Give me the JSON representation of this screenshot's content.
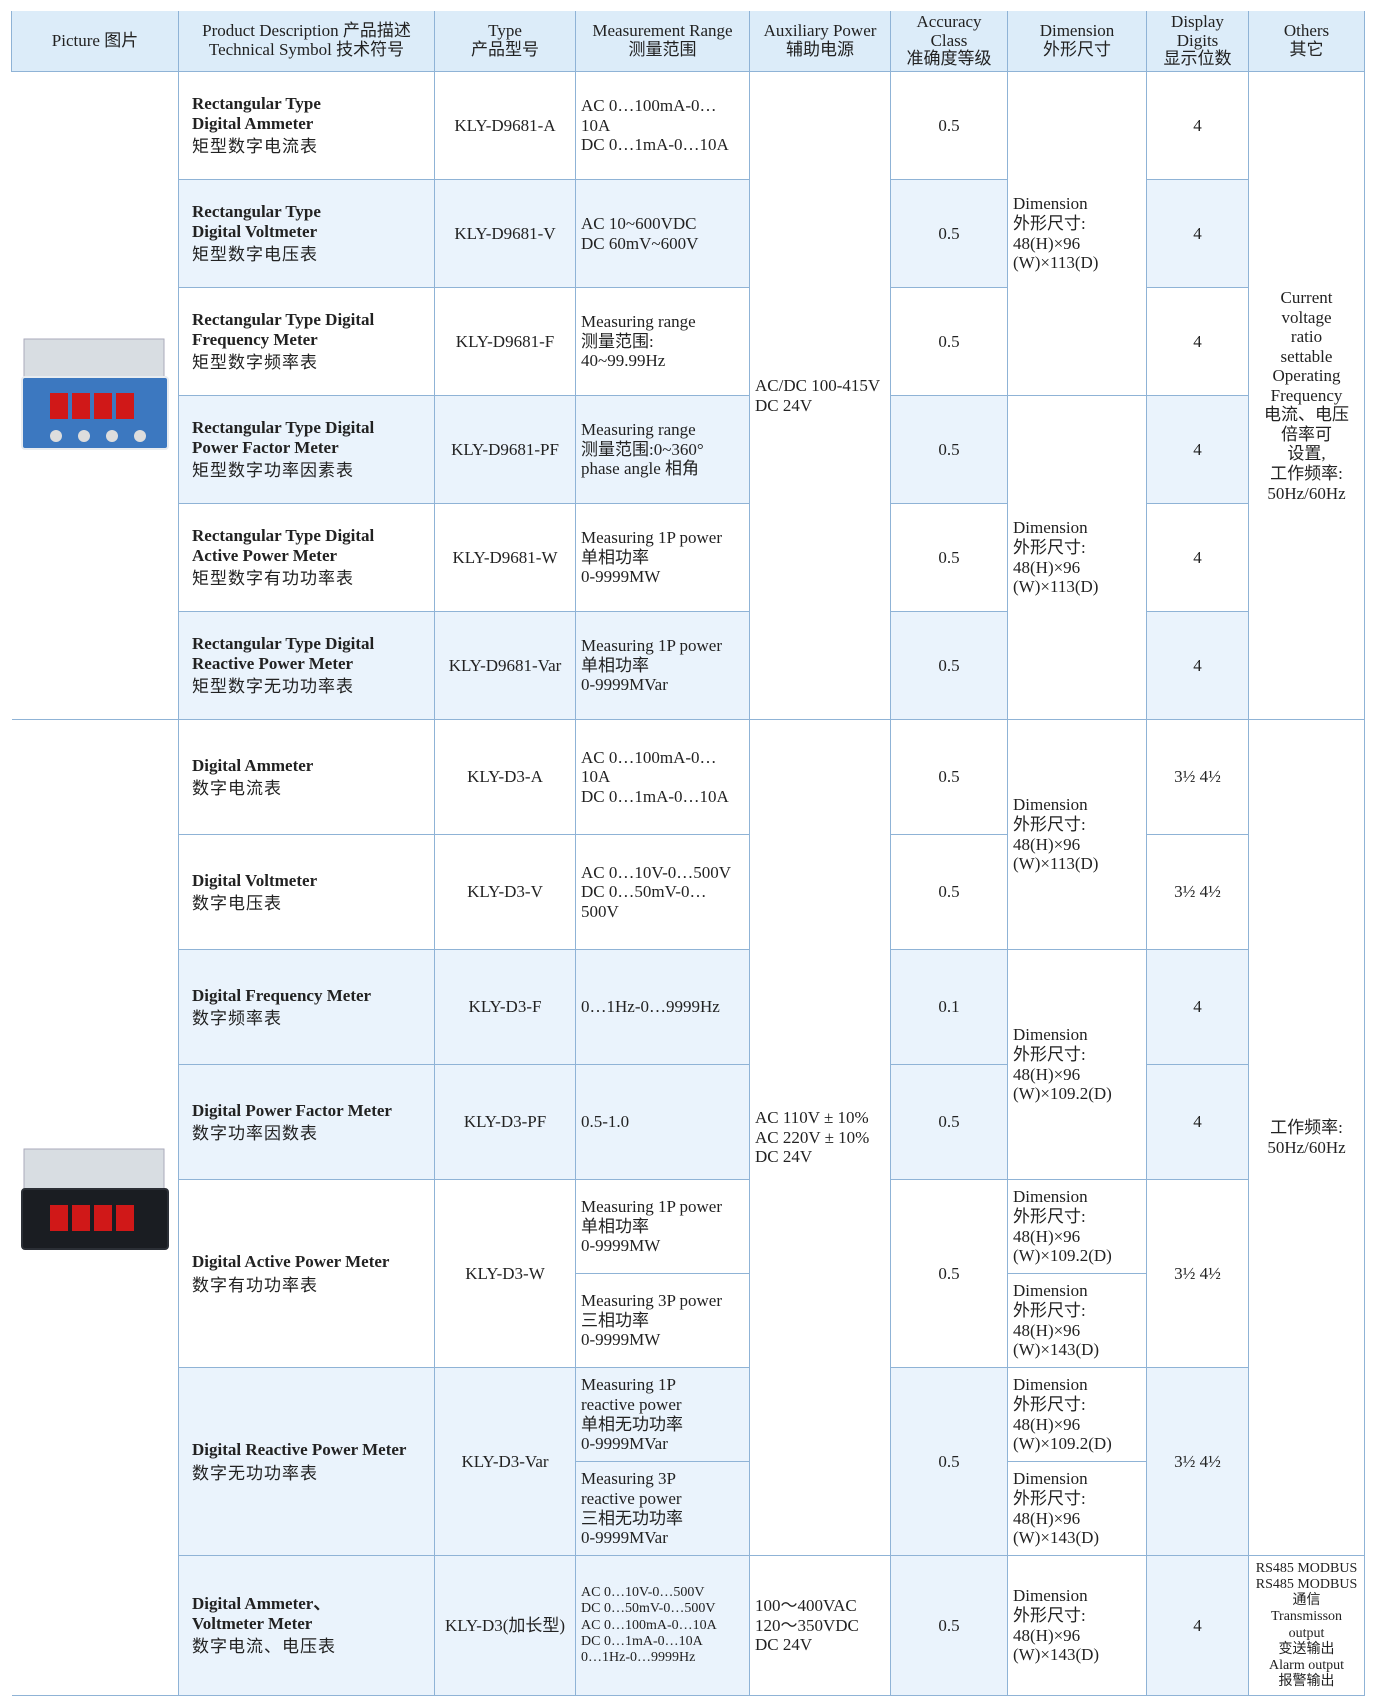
{
  "header": [
    [
      "Picture 图片"
    ],
    [
      "Product Description 产品描述",
      "Technical Symbol 技术符号"
    ],
    [
      "Type",
      "产品型号"
    ],
    [
      "Measurement Range",
      "测量范围"
    ],
    [
      "Auxiliary Power",
      "辅助电源"
    ],
    [
      "Accuracy Class",
      "准确度等级"
    ],
    [
      "Dimension",
      "外形尺寸"
    ],
    [
      "Display Digits",
      "显示位数"
    ],
    [
      "Others",
      "其它"
    ]
  ],
  "s1": {
    "rows": [
      {
        "name": [
          "Rectangular Type",
          "Digital Ammeter"
        ],
        "name_zh": "矩型数字电流表",
        "type": "KLY-D9681-A",
        "range": [
          "AC 0…100mA-0…10A",
          "DC 0…1mA-0…10A"
        ],
        "accuracy": "0.5",
        "digits": "4"
      },
      {
        "name": [
          "Rectangular Type",
          "Digital Voltmeter"
        ],
        "name_zh": "矩型数字电压表",
        "type": "KLY-D9681-V",
        "range": [
          "AC 10~600VDC",
          "DC 60mV~600V"
        ],
        "accuracy": "0.5",
        "digits": "4"
      },
      {
        "name": [
          "Rectangular Type Digital",
          "Frequency Meter"
        ],
        "name_zh": "矩型数字频率表",
        "type": "KLY-D9681-F",
        "range": [
          "Measuring range",
          "测量范围:",
          "40~99.99Hz"
        ],
        "accuracy": "0.5",
        "digits": "4"
      },
      {
        "name": [
          "Rectangular Type Digital",
          "Power Factor Meter"
        ],
        "name_zh": "矩型数字功率因素表",
        "type": "KLY-D9681-PF",
        "range": [
          "Measuring range",
          "测量范围:0~360°",
          "phase angle 相角"
        ],
        "accuracy": "0.5",
        "digits": "4"
      },
      {
        "name": [
          "Rectangular Type Digital",
          "Active Power Meter"
        ],
        "name_zh": "矩型数字有功功率表",
        "type": "KLY-D9681-W",
        "range": [
          "Measuring 1P power",
          "单相功率",
          "0-9999MW"
        ],
        "accuracy": "0.5",
        "digits": "4"
      },
      {
        "name": [
          "Rectangular Type Digital",
          "Reactive Power Meter"
        ],
        "name_zh": "矩型数字无功功率表",
        "type": "KLY-D9681-Var",
        "range": [
          "Measuring 1P power",
          "单相功率",
          "0-9999MVar"
        ],
        "accuracy": "0.5",
        "digits": "4"
      }
    ],
    "aux": [
      "AC/DC 100-415V",
      "DC 24V"
    ],
    "dimension": [
      [
        "Dimension",
        "外形尺寸:",
        "48(H)×96",
        "(W)×113(D)"
      ],
      [
        "Dimension",
        "外形尺寸:",
        "48(H)×96",
        "(W)×113(D)"
      ]
    ],
    "others": [
      "Current",
      "voltage",
      "ratio",
      "settable",
      "Operating",
      "Frequency",
      "电流、电压",
      "倍率可",
      "设置,",
      "工作频率:",
      "50Hz/60Hz"
    ]
  },
  "s2": {
    "rows": [
      {
        "name": [
          "Digital Ammeter"
        ],
        "name_zh": "数字电流表",
        "type": "KLY-D3-A",
        "range": [
          "AC 0…100mA-0…10A",
          "DC 0…1mA-0…10A"
        ],
        "accuracy": "0.5",
        "digits": "3½ 4½"
      },
      {
        "name": [
          "Digital Voltmeter"
        ],
        "name_zh": "数字电压表",
        "type": "KLY-D3-V",
        "range": [
          "AC 0…10V-0…500V",
          "DC 0…50mV-0…500V"
        ],
        "accuracy": "0.5",
        "digits": "3½ 4½"
      },
      {
        "name": [
          "Digital Frequency Meter"
        ],
        "name_zh": "数字频率表",
        "type": "KLY-D3-F",
        "range": [
          "0…1Hz-0…9999Hz"
        ],
        "accuracy": "0.1",
        "digits": "4"
      },
      {
        "name": [
          "Digital Power Factor Meter"
        ],
        "name_zh": "数字功率因数表",
        "type": "KLY-D3-PF",
        "range": [
          "0.5-1.0"
        ],
        "accuracy": "0.5",
        "digits": "4"
      },
      {
        "name": [
          "Digital Active Power Meter"
        ],
        "name_zh": "数字有功功率表",
        "type": "KLY-D3-W",
        "ranges": [
          [
            "Measuring 1P power",
            "单相功率",
            "0-9999MW"
          ],
          [
            "Measuring 3P power",
            "三相功率",
            "0-9999MW"
          ]
        ],
        "accuracy": "0.5",
        "dimensions": [
          [
            "Dimension",
            "外形尺寸:",
            "48(H)×96",
            "(W)×109.2(D)"
          ],
          [
            "Dimension",
            "外形尺寸:",
            "48(H)×96",
            "(W)×143(D)"
          ]
        ],
        "digits": "3½ 4½"
      },
      {
        "name": [
          "Digital Reactive Power Meter"
        ],
        "name_zh": "数字无功功率表",
        "type": "KLY-D3-Var",
        "ranges": [
          [
            "Measuring 1P",
            "reactive power",
            "单相无功功率",
            "0-9999MVar"
          ],
          [
            "Measuring 3P",
            "reactive power",
            "三相无功功率",
            "0-9999MVar"
          ]
        ],
        "accuracy": "0.5",
        "dimensions": [
          [
            "Dimension",
            "外形尺寸:",
            "48(H)×96",
            "(W)×109.2(D)"
          ],
          [
            "Dimension",
            "外形尺寸:",
            "48(H)×96",
            "(W)×143(D)"
          ]
        ],
        "digits": "3½ 4½"
      }
    ],
    "aux": [
      "AC 110V ± 10%",
      "AC 220V ± 10%",
      "DC 24V"
    ],
    "dimension": [
      [
        "Dimension",
        "外形尺寸:",
        "48(H)×96",
        "(W)×113(D)"
      ],
      [
        "Dimension",
        "外形尺寸:",
        "48(H)×96",
        "(W)×109.2(D)"
      ]
    ],
    "others": [
      "工作频率:",
      "50Hz/60Hz"
    ]
  },
  "extended": {
    "name": [
      "Digital Ammeter、",
      "Voltmeter Meter"
    ],
    "name_zh": "数字电流、电压表",
    "type": "KLY-D3(加长型)",
    "range": [
      "AC 0…10V-0…500V",
      "DC 0…50mV-0…500V",
      "AC 0…100mA-0…10A",
      "DC 0…1mA-0…10A",
      "0…1Hz-0…9999Hz"
    ],
    "aux": [
      "100～400VAC",
      "120～350VDC",
      "DC 24V"
    ],
    "accuracy": "0.5",
    "dimension": [
      "Dimension",
      "外形尺寸:",
      "48(H)×96",
      "(W)×143(D)"
    ],
    "digits": "4",
    "others": [
      "RS485 MODBUS",
      "RS485 MODBUS通信",
      "Transmisson output",
      "变送输出",
      "Alarm output",
      "报警输出"
    ]
  }
}
